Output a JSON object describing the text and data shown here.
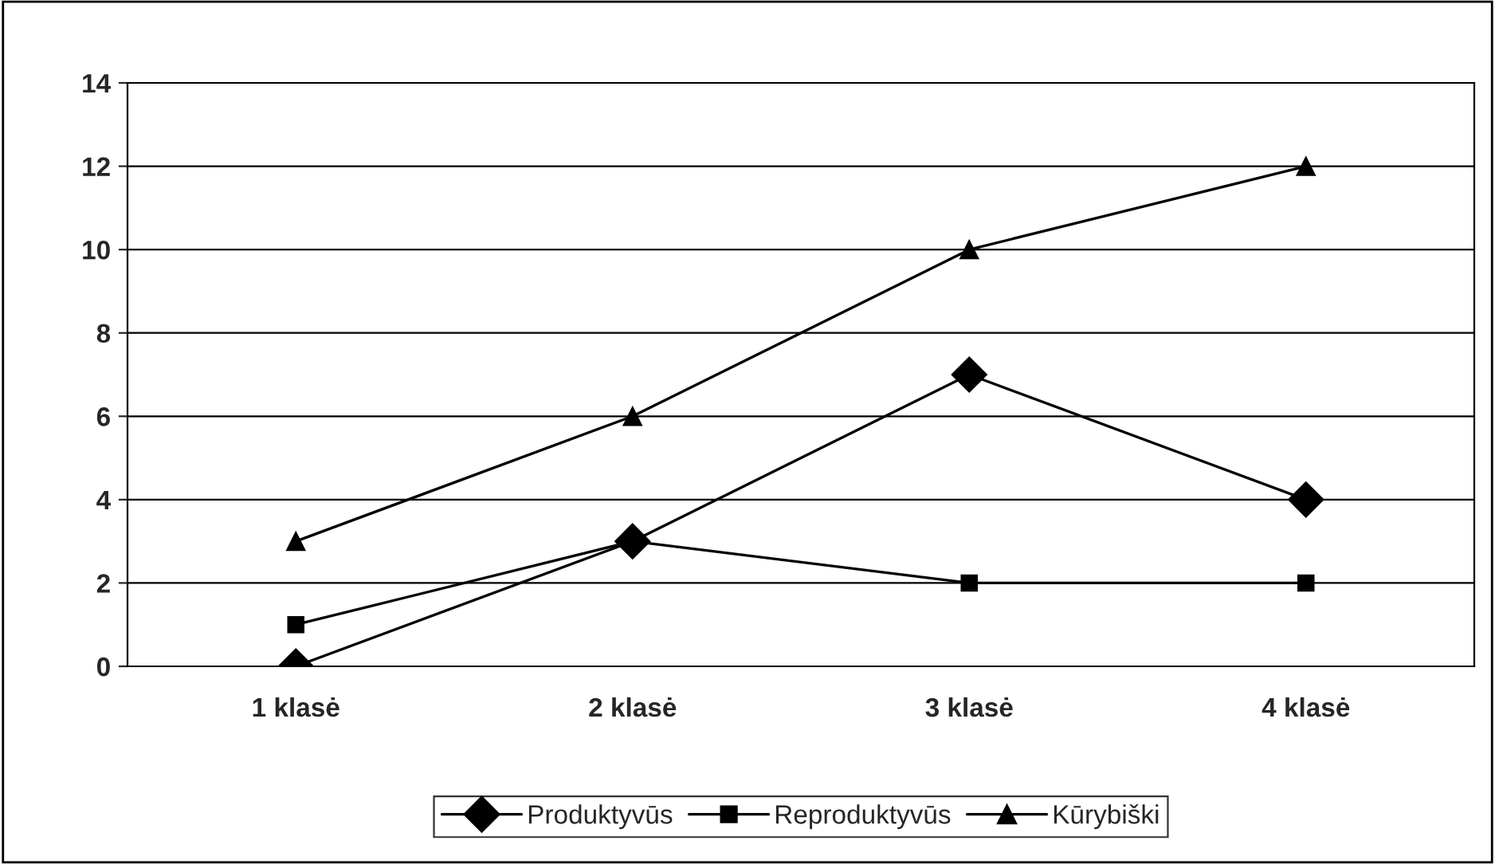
{
  "chart_data": {
    "type": "line",
    "categories": [
      "1 klasė",
      "2 klasė",
      "3 klasė",
      "4 klasė"
    ],
    "series": [
      {
        "name": "Produktyvūs",
        "color": "#000000",
        "marker": "diamond",
        "values": [
          0,
          3,
          7,
          4
        ]
      },
      {
        "name": "Reproduktyvūs",
        "color": "#000000",
        "marker": "square",
        "values": [
          1,
          3,
          2,
          2
        ]
      },
      {
        "name": "Kūrybiški",
        "color": "#000000",
        "marker": "triangle",
        "values": [
          3,
          6,
          10,
          12
        ]
      }
    ],
    "ylim": [
      0,
      14
    ],
    "yticks": [
      0,
      2,
      4,
      6,
      8,
      10,
      12,
      14
    ],
    "grid": "y",
    "legend": "bottom",
    "line_style": "solid"
  }
}
